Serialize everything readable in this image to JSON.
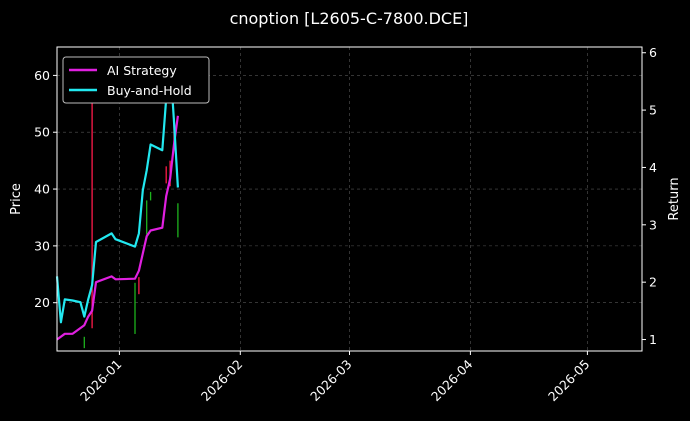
{
  "chart_data": {
    "type": "line",
    "title": "cnoption [L2605-C-7800.DCE]",
    "xlabel": "",
    "ylabel": "Price",
    "ylabel_right": "Return",
    "xlim": [
      "2025-12-16",
      "2026-05-15"
    ],
    "ylim": [
      11.5,
      65
    ],
    "ylim_right": [
      0.8,
      6.1
    ],
    "yticks": [
      20,
      30,
      40,
      50,
      60
    ],
    "yticks_right": [
      1,
      2,
      3,
      4,
      5,
      6
    ],
    "xticks": [
      "2026-01",
      "2026-02",
      "2026-03",
      "2026-04",
      "2026-05"
    ],
    "grid": true,
    "legend_position": "top-left",
    "colors": {
      "background": "#000000",
      "up_candle": "#ff1a4a",
      "down_candle": "#1db31d",
      "ai_strategy": "#e020e0",
      "buy_and_hold": "#22e8f0"
    },
    "candles": [
      {
        "date": "2025-12-23",
        "low": 12.0,
        "high": 14.0,
        "dir": "down"
      },
      {
        "date": "2025-12-25",
        "low": 15.5,
        "high": 56.0,
        "dir": "up"
      },
      {
        "date": "2026-01-05",
        "low": 14.5,
        "high": 23.5,
        "dir": "down"
      },
      {
        "date": "2026-01-06",
        "low": 21.5,
        "high": 24.5,
        "dir": "up"
      },
      {
        "date": "2026-01-08",
        "low": 32.0,
        "high": 38.0,
        "dir": "down"
      },
      {
        "date": "2026-01-09",
        "low": 38.0,
        "high": 39.5,
        "dir": "down"
      },
      {
        "date": "2026-01-13",
        "low": 41.0,
        "high": 44.0,
        "dir": "up"
      },
      {
        "date": "2026-01-14",
        "low": 40.5,
        "high": 45.0,
        "dir": "up"
      },
      {
        "date": "2026-01-15",
        "low": 47.0,
        "high": 52.5,
        "dir": "up"
      },
      {
        "date": "2026-01-16",
        "low": 31.5,
        "high": 37.5,
        "dir": "down"
      }
    ],
    "series": [
      {
        "name": "AI Strategy",
        "x": [
          "2025-12-16",
          "2025-12-18",
          "2025-12-20",
          "2025-12-23",
          "2025-12-24",
          "2025-12-25",
          "2025-12-26",
          "2025-12-30",
          "2025-12-31",
          "2026-01-05",
          "2026-01-06",
          "2026-01-07",
          "2026-01-08",
          "2026-01-09",
          "2026-01-12",
          "2026-01-13",
          "2026-01-14",
          "2026-01-15",
          "2026-01-16"
        ],
        "values": [
          1.0,
          1.1,
          1.1,
          1.25,
          1.4,
          1.5,
          2.0,
          2.1,
          2.05,
          2.06,
          2.2,
          2.5,
          2.8,
          2.9,
          2.95,
          3.5,
          3.8,
          4.4,
          4.9
        ]
      },
      {
        "name": "Buy-and-Hold",
        "x": [
          "2025-12-16",
          "2025-12-17",
          "2025-12-18",
          "2025-12-20",
          "2025-12-22",
          "2025-12-23",
          "2025-12-24",
          "2025-12-25",
          "2025-12-26",
          "2025-12-30",
          "2025-12-31",
          "2026-01-05",
          "2026-01-06",
          "2026-01-07",
          "2026-01-08",
          "2026-01-09",
          "2026-01-12",
          "2026-01-13",
          "2026-01-14",
          "2026-01-15",
          "2026-01-16"
        ],
        "values": [
          2.1,
          1.3,
          1.7,
          1.68,
          1.65,
          1.4,
          1.7,
          1.95,
          2.7,
          2.85,
          2.75,
          2.62,
          2.85,
          3.6,
          3.95,
          4.4,
          4.3,
          5.2,
          5.85,
          4.8,
          3.65
        ]
      }
    ]
  }
}
